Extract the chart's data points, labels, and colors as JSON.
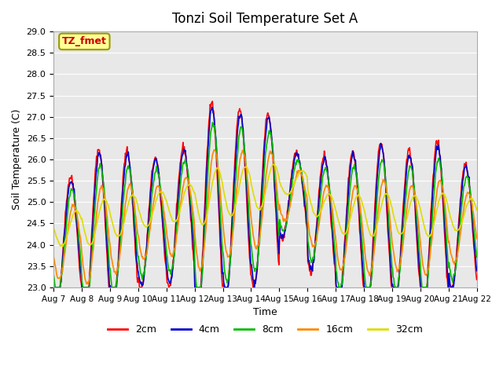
{
  "title": "Tonzi Soil Temperature Set A",
  "xlabel": "Time",
  "ylabel": "Soil Temperature (C)",
  "ylim": [
    23.0,
    29.0
  ],
  "yticks": [
    23.0,
    23.5,
    24.0,
    24.5,
    25.0,
    25.5,
    26.0,
    26.5,
    27.0,
    27.5,
    28.0,
    28.5,
    29.0
  ],
  "xtick_labels": [
    "Aug 7",
    "Aug 8",
    "Aug 9",
    "Aug 10",
    "Aug 11",
    "Aug 12",
    "Aug 13",
    "Aug 14",
    "Aug 15",
    "Aug 16",
    "Aug 17",
    "Aug 18",
    "Aug 19",
    "Aug 20",
    "Aug 21",
    "Aug 22"
  ],
  "annotation_text": "TZ_fmet",
  "annotation_color": "#cc0000",
  "annotation_bg": "#ffff99",
  "annotation_border": "#999900",
  "line_colors": [
    "#ff0000",
    "#0000cc",
    "#00bb00",
    "#ff8800",
    "#dddd00"
  ],
  "line_labels": [
    "2cm",
    "4cm",
    "8cm",
    "16cm",
    "32cm"
  ],
  "n_days": 15,
  "points_per_day": 48
}
